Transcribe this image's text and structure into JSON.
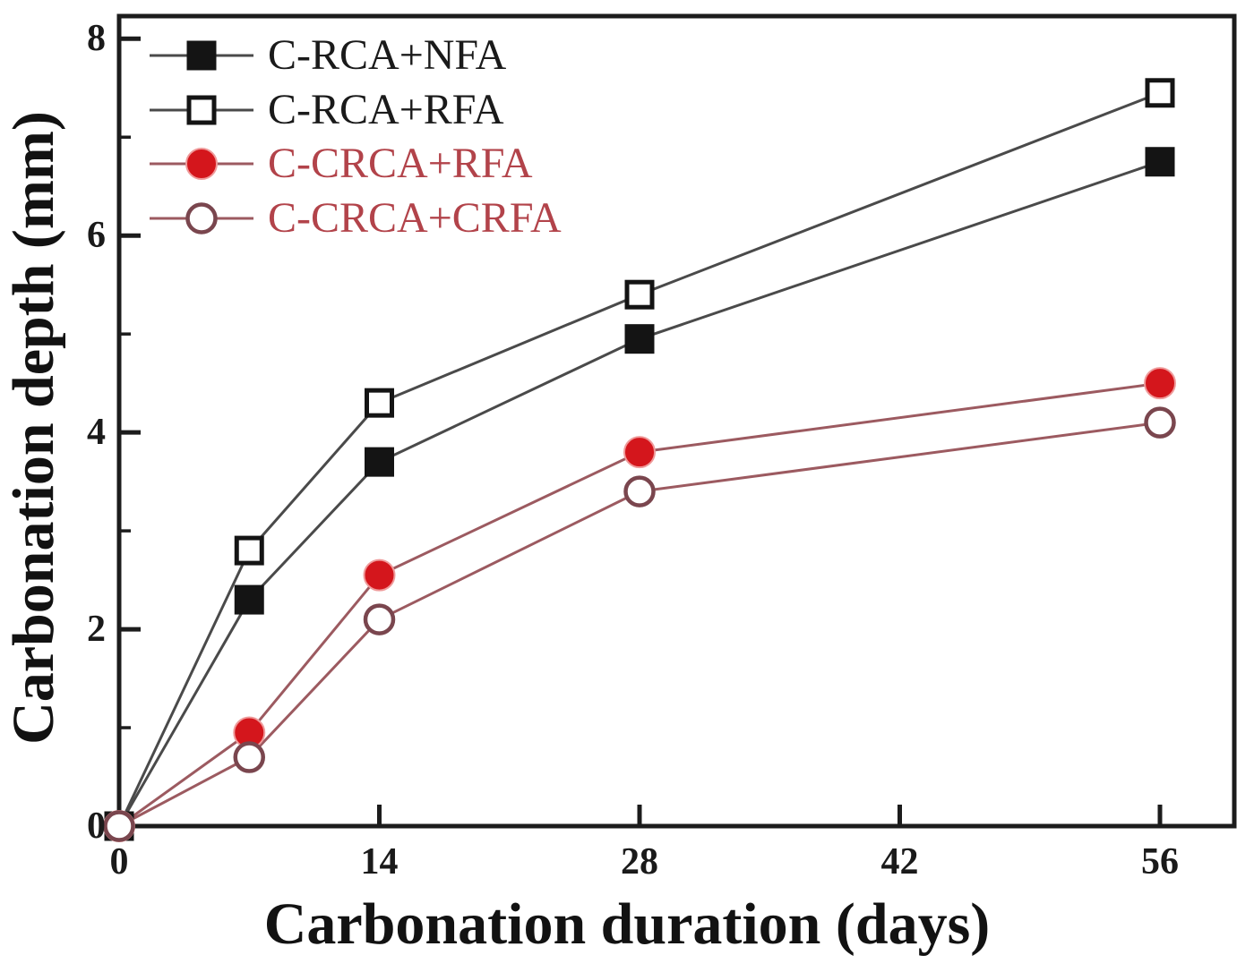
{
  "figure": {
    "background": "#ffffff",
    "frame_color": "#1c1c1c"
  },
  "chart_data": {
    "type": "line",
    "title": "",
    "xlabel": "Carbonation duration (days)",
    "ylabel": "Carbonation depth (mm)",
    "x": [
      0,
      7,
      14,
      28,
      56
    ],
    "series": [
      {
        "name": "C-RCA+NFA",
        "values": [
          0,
          2.3,
          3.7,
          4.95,
          6.75
        ],
        "line_color": "#4a4a4a",
        "label_color": "#1a1a1a",
        "marker": {
          "shape": "square",
          "fill": "#141414",
          "stroke": "#141414",
          "size": 32,
          "stroke_width": 1
        }
      },
      {
        "name": "C-RCA+RFA",
        "values": [
          0,
          2.8,
          4.3,
          5.4,
          7.45
        ],
        "line_color": "#4a4a4a",
        "label_color": "#1a1a1a",
        "marker": {
          "shape": "square",
          "fill": "#ffffff",
          "stroke": "#141414",
          "size": 28,
          "stroke_width": 5
        }
      },
      {
        "name": "C-CRCA+RFA",
        "values": [
          0,
          0.95,
          2.55,
          3.8,
          4.5
        ],
        "line_color": "#9c5a60",
        "label_color": "#b2434a",
        "marker": {
          "shape": "circle",
          "fill": "#d4161c",
          "stroke": "#ef9a9a",
          "size": 34,
          "stroke_width": 2
        }
      },
      {
        "name": "C-CRCA+CRFA",
        "values": [
          0,
          0.7,
          2.1,
          3.4,
          4.1
        ],
        "line_color": "#9c5a60",
        "label_color": "#b2434a",
        "marker": {
          "shape": "circle",
          "fill": "#ffffff",
          "stroke": "#7a464e",
          "size": 31,
          "stroke_width": 4.5
        }
      }
    ],
    "x_ticks": [
      "0",
      "14",
      "28",
      "42",
      "56"
    ],
    "x_tick_values": [
      0,
      14,
      28,
      42,
      56
    ],
    "y_ticks": [
      "0",
      "2",
      "4",
      "6",
      "8"
    ],
    "y_tick_values": [
      0,
      2,
      4,
      6,
      8
    ],
    "y_minor_tick_values": [
      1,
      3,
      5,
      7
    ],
    "xlim": [
      0,
      60
    ],
    "ylim": [
      0,
      8.23
    ],
    "grid": false,
    "legend_position": "top-left"
  }
}
